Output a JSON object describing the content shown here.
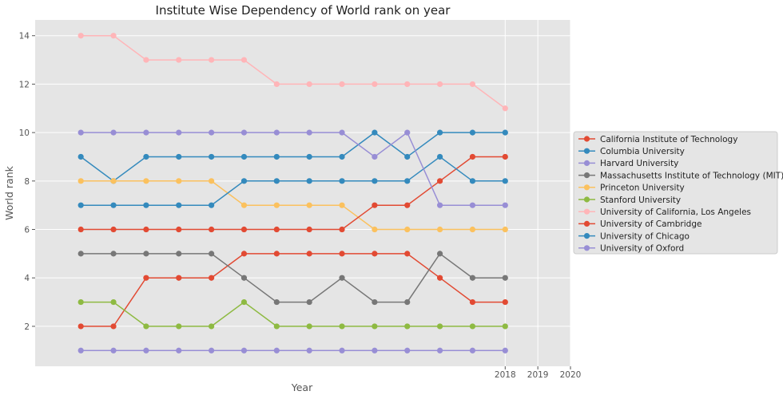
{
  "chart_data": {
    "type": "line",
    "title": "Institute Wise Dependency of World rank on year",
    "xlabel": "Year",
    "ylabel": "World rank",
    "x_ticks": [
      2018,
      2019,
      2020
    ],
    "x_range": [
      2003.6,
      2020
    ],
    "y_ticks": [
      2,
      4,
      6,
      8,
      10,
      12,
      14
    ],
    "ylim": [
      0.35,
      14.65
    ],
    "grid": true,
    "legend_placement": "right",
    "x": [
      2005,
      2006,
      2007,
      2008,
      2009,
      2010,
      2011,
      2012,
      2013,
      2014,
      2015,
      2016,
      2017,
      2018
    ],
    "series": [
      {
        "name": "California Institute of Technology",
        "color": "#E24A33",
        "values": [
          2,
          2,
          4,
          4,
          4,
          5,
          5,
          5,
          5,
          5,
          5,
          4,
          3,
          3
        ]
      },
      {
        "name": "Columbia University",
        "color": "#348ABD",
        "values": [
          9,
          8,
          9,
          9,
          9,
          9,
          9,
          9,
          9,
          10,
          9,
          10,
          10,
          10
        ]
      },
      {
        "name": "Harvard University",
        "color": "#988ED5",
        "values": [
          1,
          1,
          1,
          1,
          1,
          1,
          1,
          1,
          1,
          1,
          1,
          1,
          1,
          1
        ]
      },
      {
        "name": "Massachusetts Institute of Technology (MIT)",
        "color": "#777777",
        "values": [
          5,
          5,
          5,
          5,
          5,
          4,
          3,
          3,
          4,
          3,
          3,
          5,
          4,
          4
        ]
      },
      {
        "name": "Princeton University",
        "color": "#FBC15E",
        "values": [
          8,
          8,
          8,
          8,
          8,
          7,
          7,
          7,
          7,
          6,
          6,
          6,
          6,
          6
        ]
      },
      {
        "name": "Stanford University",
        "color": "#8EBA42",
        "values": [
          3,
          3,
          2,
          2,
          2,
          3,
          2,
          2,
          2,
          2,
          2,
          2,
          2,
          2
        ]
      },
      {
        "name": "University of California, Los Angeles",
        "color": "#FFB5B8",
        "values": [
          14,
          14,
          13,
          13,
          13,
          13,
          12,
          12,
          12,
          12,
          12,
          12,
          12,
          11
        ]
      },
      {
        "name": "University of Cambridge",
        "color": "#E24A33",
        "values": [
          6,
          6,
          6,
          6,
          6,
          6,
          6,
          6,
          6,
          7,
          7,
          8,
          9,
          9
        ]
      },
      {
        "name": "University of Chicago",
        "color": "#348ABD",
        "values": [
          7,
          7,
          7,
          7,
          7,
          8,
          8,
          8,
          8,
          8,
          8,
          9,
          8,
          8
        ]
      },
      {
        "name": "University of Oxford",
        "color": "#988ED5",
        "values": [
          10,
          10,
          10,
          10,
          10,
          10,
          10,
          10,
          10,
          9,
          10,
          7,
          7,
          7
        ]
      }
    ]
  }
}
